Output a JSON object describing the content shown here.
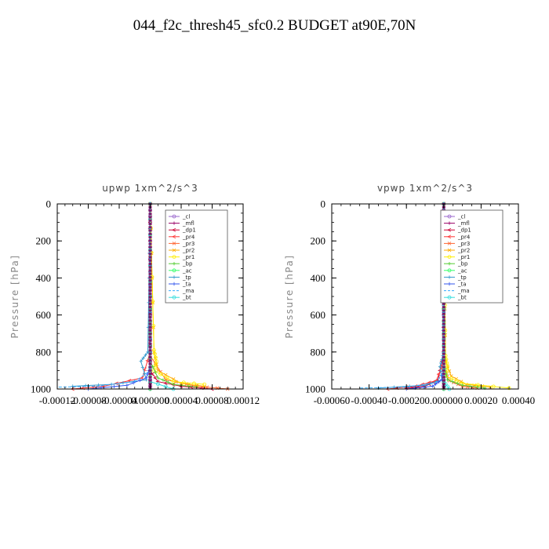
{
  "title": "044_f2c_thresh45_sfc0.2  BUDGET at90E,70N",
  "legend": [
    {
      "name": "_cl",
      "color": "#9966cc",
      "marker": "o"
    },
    {
      "name": "_mfl",
      "color": "#990066",
      "marker": "+"
    },
    {
      "name": "_dp1",
      "color": "#cc0033",
      "marker": "<"
    },
    {
      "name": "_pr4",
      "color": "#ff3333",
      "marker": "<"
    },
    {
      "name": "_pr3",
      "color": "#ff6633",
      "marker": "x"
    },
    {
      "name": "_pr2",
      "color": "#ffaa00",
      "marker": "x"
    },
    {
      "name": "_pr1",
      "color": "#ffee00",
      "marker": "o"
    },
    {
      "name": "_bp",
      "color": "#55cc33",
      "marker": "+"
    },
    {
      "name": "_ac",
      "color": "#33ff66",
      "marker": "o"
    },
    {
      "name": "_tp",
      "color": "#3399cc",
      "marker": "+"
    },
    {
      "name": "_ta",
      "color": "#3355ee",
      "marker": "+"
    },
    {
      "name": "_ma",
      "color": "#33aaff",
      "marker": "-"
    },
    {
      "name": "_bt",
      "color": "#33dddd",
      "marker": "o"
    }
  ],
  "chart_data": [
    {
      "type": "line",
      "title": "upwp   1xm^2/s^3",
      "ylabel": "Pressure  [hPa]",
      "xlim": [
        -0.00012,
        0.00012
      ],
      "ylim": [
        1000,
        0
      ],
      "xticks": [
        -0.00012,
        -8e-05,
        -4e-05,
        0.0,
        4e-05,
        8e-05,
        0.00012
      ],
      "xtick_labels": [
        "-0.00012",
        "-0.00008",
        "-0.00004",
        "0.000000",
        "0.00004",
        "0.00008",
        "0.00012"
      ],
      "yticks": [
        0,
        200,
        400,
        600,
        800,
        1000
      ],
      "ytick_labels": [
        "0",
        "200",
        "400",
        "600",
        "800",
        "1000"
      ],
      "legend_position": "top-right",
      "series": [
        {
          "name": "_cl",
          "x": [
            0,
            0,
            0,
            0,
            0,
            0,
            0
          ],
          "y": [
            0,
            200,
            400,
            600,
            800,
            950,
            1000
          ]
        },
        {
          "name": "_mfl",
          "x": [
            0,
            0,
            0,
            0,
            0,
            0,
            0
          ],
          "y": [
            0,
            200,
            400,
            600,
            800,
            950,
            1000
          ]
        },
        {
          "name": "_dp1",
          "x": [
            0,
            0,
            0,
            1e-05,
            4e-05,
            8e-05
          ],
          "y": [
            0,
            600,
            900,
            960,
            985,
            1000
          ]
        },
        {
          "name": "_pr4",
          "x": [
            0,
            0,
            -1e-05,
            -6e-05,
            -0.0001
          ],
          "y": [
            0,
            800,
            940,
            985,
            1000
          ]
        },
        {
          "name": "_pr3",
          "x": [
            0,
            0,
            2e-05,
            6e-05,
            0.0001
          ],
          "y": [
            0,
            820,
            950,
            985,
            1000
          ]
        },
        {
          "name": "_pr2",
          "x": [
            0,
            5e-06,
            1e-05,
            4e-05,
            7e-05
          ],
          "y": [
            0,
            800,
            900,
            970,
            985
          ]
        },
        {
          "name": "_pr1",
          "x": [
            0,
            5e-06,
            8e-06,
            5e-06,
            3e-05,
            7e-05
          ],
          "y": [
            0,
            790,
            850,
            900,
            960,
            975
          ]
        },
        {
          "name": "_bp",
          "x": [
            0,
            0,
            1e-05,
            3e-05,
            6e-05
          ],
          "y": [
            0,
            850,
            940,
            975,
            990
          ]
        },
        {
          "name": "_ac",
          "x": [
            0,
            0,
            0,
            0
          ],
          "y": [
            0,
            500,
            900,
            1000
          ]
        },
        {
          "name": "_tp",
          "x": [
            0,
            -3e-06,
            -1.2e-05,
            -5e-06,
            -5e-05,
            -0.0001
          ],
          "y": [
            0,
            800,
            850,
            950,
            975,
            985
          ]
        },
        {
          "name": "_ta",
          "x": [
            0,
            0,
            -5e-06,
            -3e-05,
            -8e-05
          ],
          "y": [
            0,
            880,
            940,
            980,
            1000
          ]
        },
        {
          "name": "_ma",
          "x": [
            0,
            0,
            -2e-05,
            -7e-05,
            -0.00012
          ],
          "y": [
            0,
            900,
            960,
            985,
            990
          ]
        },
        {
          "name": "_bt",
          "x": [
            0,
            0,
            0,
            3e-05
          ],
          "y": [
            0,
            500,
            960,
            1000
          ]
        }
      ]
    },
    {
      "type": "line",
      "title": "vpwp   1xm^2/s^3",
      "ylabel": "Pressure  [hPa]",
      "xlim": [
        -0.0006,
        0.0004
      ],
      "ylim": [
        1000,
        0
      ],
      "xticks": [
        -0.0006,
        -0.0004,
        -0.0002,
        0.0,
        0.0002,
        0.0004
      ],
      "xtick_labels": [
        "-0.00060",
        "-0.00040",
        "-0.00020",
        "0.000000",
        "0.00020",
        "0.00040"
      ],
      "yticks": [
        0,
        200,
        400,
        600,
        800,
        1000
      ],
      "ytick_labels": [
        "0",
        "200",
        "400",
        "600",
        "800",
        "1000"
      ],
      "legend_position": "top-right",
      "series": [
        {
          "name": "_cl",
          "x": [
            0,
            0,
            0,
            0,
            0,
            0,
            0
          ],
          "y": [
            0,
            200,
            400,
            600,
            800,
            950,
            1000
          ]
        },
        {
          "name": "_mfl",
          "x": [
            0,
            0,
            0,
            0,
            0,
            0,
            0
          ],
          "y": [
            0,
            200,
            400,
            600,
            800,
            950,
            1000
          ]
        },
        {
          "name": "_dp1",
          "x": [
            0,
            0,
            -3e-05,
            -0.0001,
            -0.0002
          ],
          "y": [
            0,
            800,
            950,
            985,
            995
          ]
        },
        {
          "name": "_pr4",
          "x": [
            0,
            0,
            -4e-05,
            -0.00015,
            -0.0003
          ],
          "y": [
            0,
            850,
            955,
            985,
            1000
          ]
        },
        {
          "name": "_pr3",
          "x": [
            0,
            0,
            3e-05,
            0.0001,
            0.00018
          ],
          "y": [
            0,
            880,
            955,
            985,
            995
          ]
        },
        {
          "name": "_pr2",
          "x": [
            0,
            1e-05,
            4e-05,
            0.00012,
            0.00025
          ],
          "y": [
            0,
            850,
            930,
            975,
            990
          ]
        },
        {
          "name": "_pr1",
          "x": [
            0,
            1e-05,
            2e-05,
            1e-05,
            0.0001,
            0.00035
          ],
          "y": [
            0,
            820,
            880,
            930,
            970,
            995
          ]
        },
        {
          "name": "_bp",
          "x": [
            0,
            0,
            2e-05,
            0.0001,
            0.00022
          ],
          "y": [
            0,
            860,
            950,
            980,
            995
          ]
        },
        {
          "name": "_ac",
          "x": [
            0,
            0,
            0,
            0
          ],
          "y": [
            0,
            500,
            900,
            1000
          ]
        },
        {
          "name": "_tp",
          "x": [
            0,
            -5e-06,
            -2e-05,
            -1e-05,
            -0.0001,
            -0.00035
          ],
          "y": [
            0,
            820,
            880,
            950,
            980,
            995
          ]
        },
        {
          "name": "_ta",
          "x": [
            0,
            0,
            -1e-05,
            -6e-05,
            -0.0002
          ],
          "y": [
            0,
            880,
            950,
            985,
            1000
          ]
        },
        {
          "name": "_ma",
          "x": [
            0,
            0,
            -4e-05,
            -0.0002,
            -0.00045
          ],
          "y": [
            0,
            900,
            965,
            990,
            995
          ]
        },
        {
          "name": "_bt",
          "x": [
            0,
            0,
            0,
            3e-05
          ],
          "y": [
            0,
            500,
            960,
            1000
          ]
        }
      ]
    }
  ]
}
